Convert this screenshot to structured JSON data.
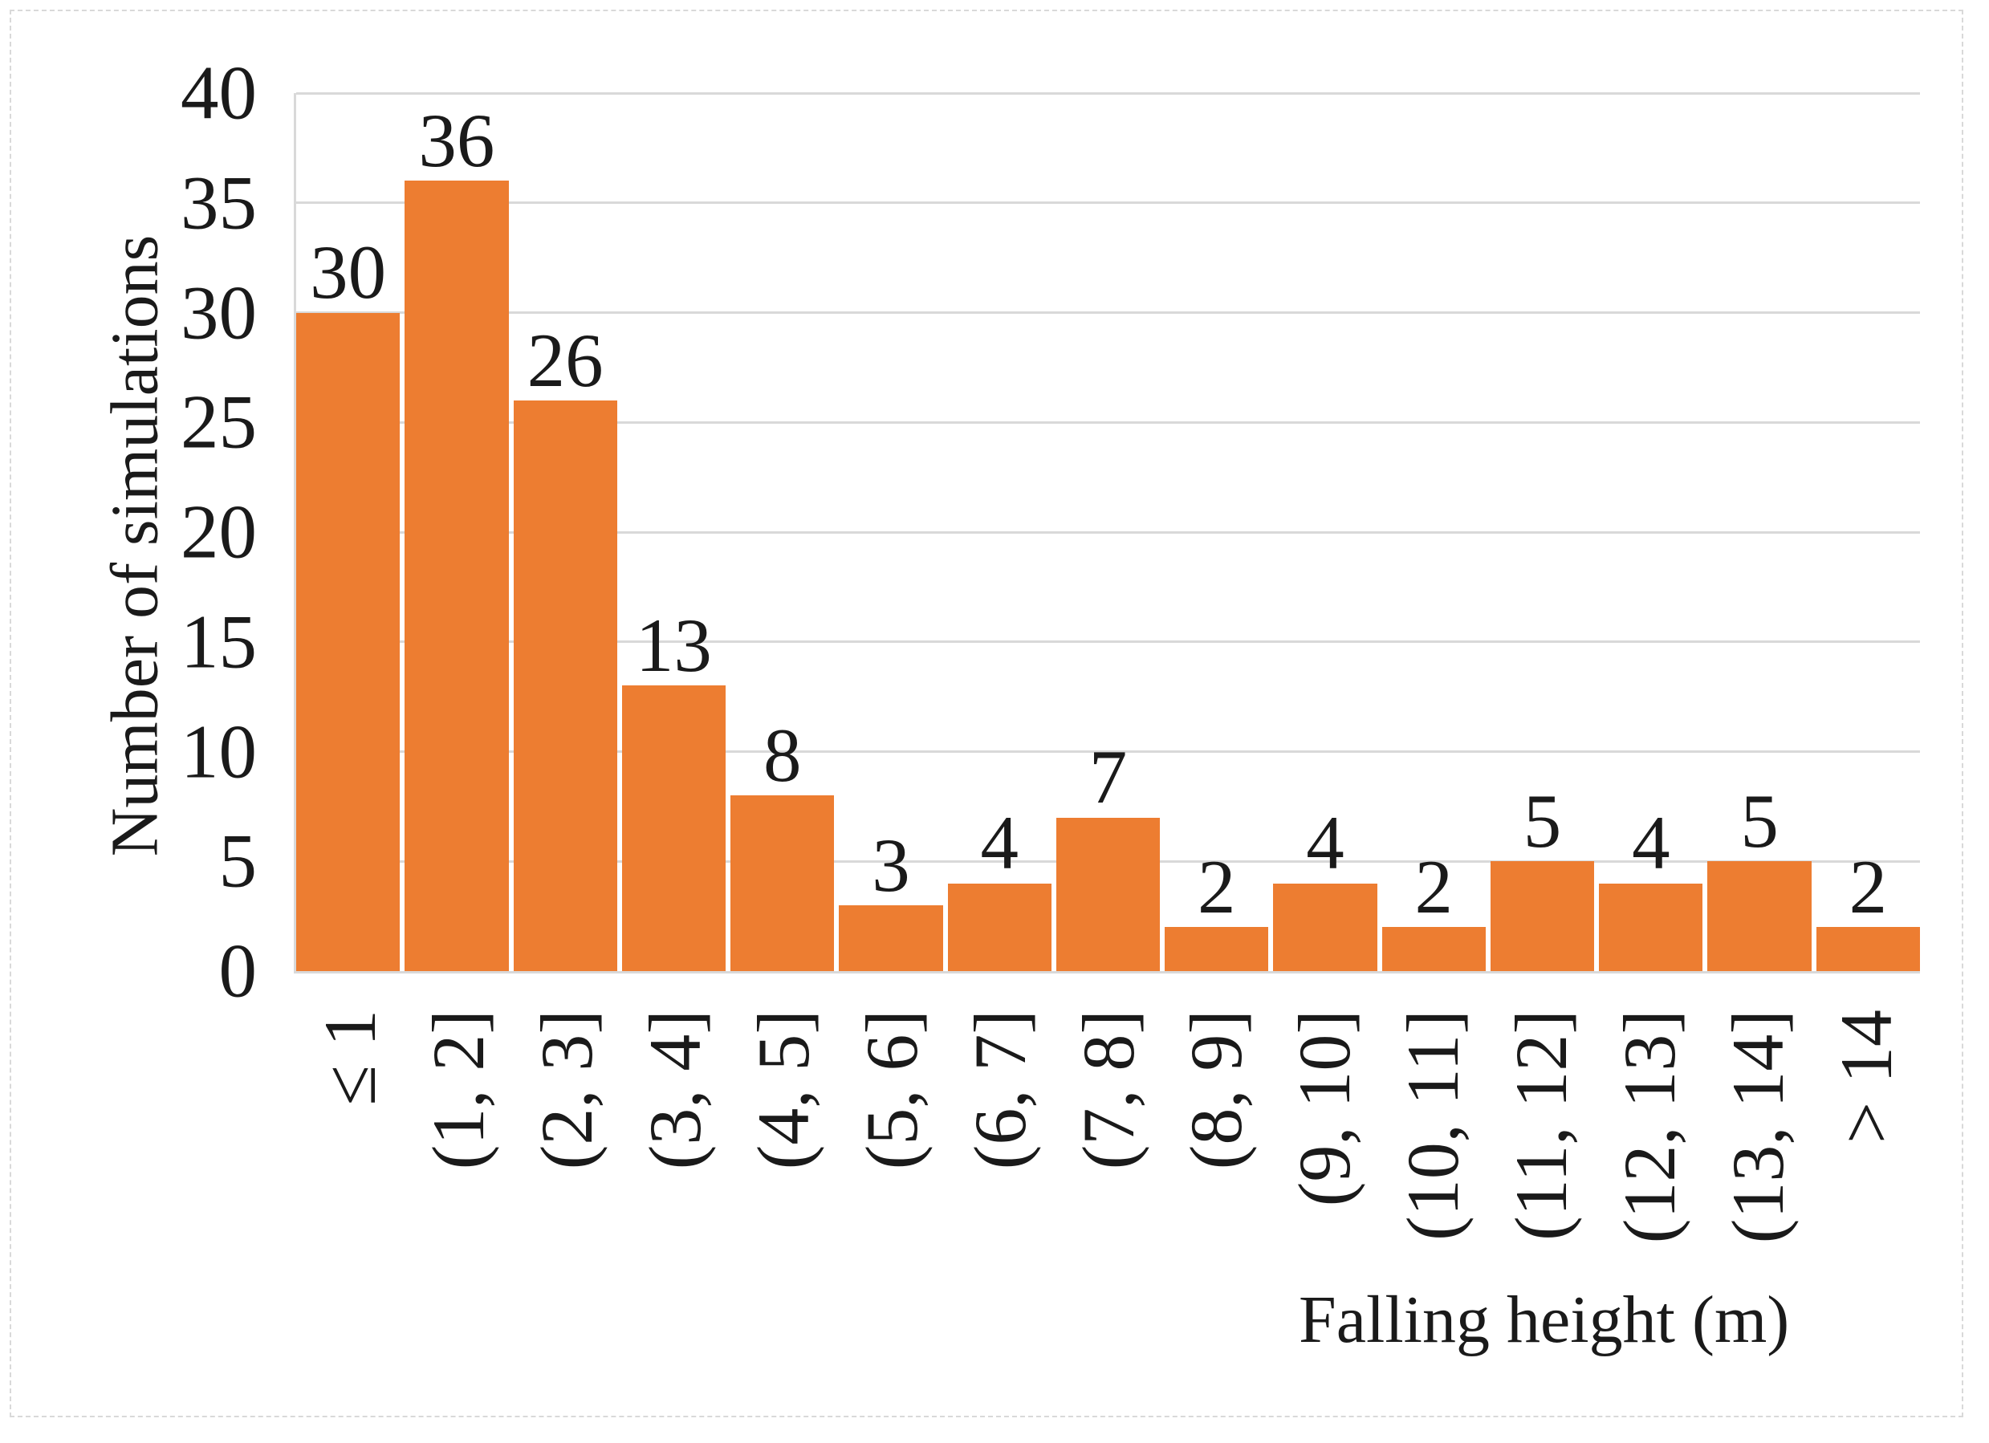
{
  "figure": {
    "background": "#ffffff",
    "border_color": "#d9d9d9"
  },
  "chart_data": {
    "type": "bar",
    "title": "",
    "categories": [
      "≤ 1",
      "(1, 2]",
      "(2, 3]",
      "(3, 4]",
      "(4, 5]",
      "(5, 6]",
      "(6, 7]",
      "(7, 8]",
      "(8, 9]",
      "(9, 10]",
      "(10, 11]",
      "(11, 12]",
      "(12, 13]",
      "(13, 14]",
      "> 14"
    ],
    "values": [
      30,
      36,
      26,
      13,
      8,
      3,
      4,
      7,
      2,
      4,
      2,
      5,
      4,
      5,
      2
    ],
    "data_labels": [
      30,
      36,
      26,
      13,
      8,
      3,
      4,
      7,
      2,
      4,
      2,
      5,
      4,
      5,
      2
    ],
    "xlabel": "Falling height (m)",
    "ylabel": "Number of simulations",
    "ylim": [
      0,
      40
    ],
    "yticks": [
      0,
      5,
      10,
      15,
      20,
      25,
      30,
      35,
      40
    ],
    "grid": true,
    "legend": "none",
    "bar_color": "#ED7D31",
    "gridline_color": "#D9D9D9",
    "text_color": "#1a1a1a"
  }
}
